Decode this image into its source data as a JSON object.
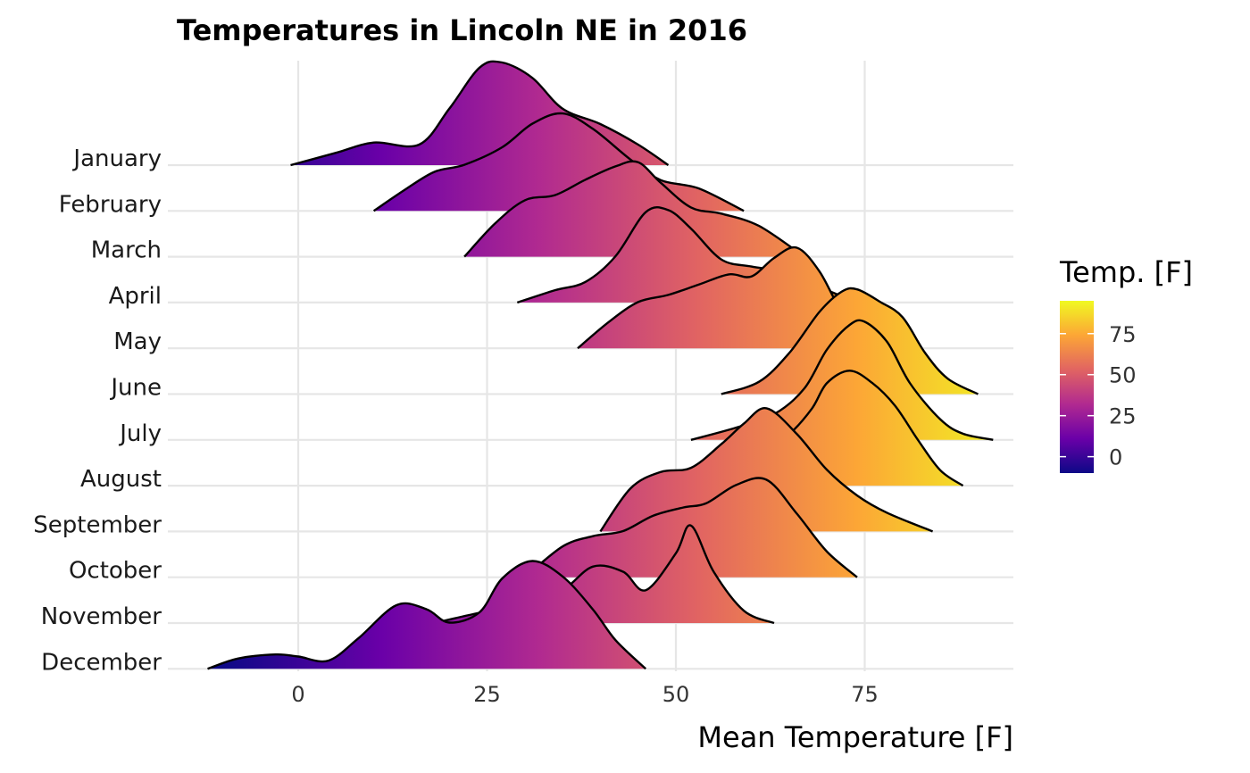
{
  "chart_data": {
    "type": "area",
    "title": "Temperatures in Lincoln NE in 2016",
    "xlabel": "Mean Temperature [F]",
    "ylabel": "",
    "xlim": [
      -17,
      95
    ],
    "xticks": [
      0,
      25,
      50,
      75
    ],
    "grid": true,
    "legend": {
      "title": "Temp. [F]",
      "placement": "right",
      "ticks": [
        0,
        25,
        50,
        75
      ],
      "range": [
        -10,
        95
      ],
      "colormap": "plasma",
      "stops": [
        "#0d0887",
        "#6a00a8",
        "#b12a90",
        "#e16462",
        "#fca636",
        "#f0f921"
      ]
    },
    "series": [
      {
        "name": "January",
        "x": [
          -1,
          5,
          10,
          16,
          20,
          24,
          27,
          31,
          35,
          40,
          45,
          49
        ],
        "density": [
          0,
          0.12,
          0.22,
          0.2,
          0.55,
          0.95,
          1.0,
          0.85,
          0.55,
          0.4,
          0.2,
          0
        ]
      },
      {
        "name": "February",
        "x": [
          10,
          14,
          18,
          22,
          27,
          31,
          35,
          39,
          44,
          48,
          53,
          59
        ],
        "density": [
          0,
          0.2,
          0.38,
          0.45,
          0.62,
          0.85,
          0.95,
          0.8,
          0.5,
          0.3,
          0.22,
          0
        ]
      },
      {
        "name": "March",
        "x": [
          22,
          26,
          30,
          34,
          38,
          42,
          45,
          48,
          52,
          56,
          61,
          67
        ],
        "density": [
          0,
          0.32,
          0.55,
          0.6,
          0.75,
          0.88,
          0.92,
          0.72,
          0.48,
          0.42,
          0.3,
          0
        ]
      },
      {
        "name": "April",
        "x": [
          29,
          34,
          38,
          42,
          46,
          49,
          52,
          56,
          60,
          64,
          68,
          74
        ],
        "density": [
          0,
          0.12,
          0.2,
          0.45,
          0.88,
          0.9,
          0.72,
          0.42,
          0.35,
          0.3,
          0.18,
          0
        ]
      },
      {
        "name": "May",
        "x": [
          37,
          41,
          45,
          49,
          53,
          57,
          60,
          63,
          66,
          69,
          72,
          76
        ],
        "density": [
          0,
          0.25,
          0.45,
          0.52,
          0.62,
          0.72,
          0.7,
          0.88,
          0.98,
          0.75,
          0.35,
          0
        ]
      },
      {
        "name": "June",
        "x": [
          56,
          61,
          65,
          69,
          72,
          74,
          77,
          80,
          83,
          86,
          90
        ],
        "density": [
          0,
          0.12,
          0.4,
          0.8,
          1.0,
          1.02,
          0.9,
          0.75,
          0.4,
          0.15,
          0
        ]
      },
      {
        "name": "July",
        "x": [
          52,
          58,
          63,
          67,
          70,
          73,
          75,
          78,
          81,
          85,
          88,
          92
        ],
        "density": [
          0,
          0.12,
          0.25,
          0.5,
          0.88,
          1.12,
          1.15,
          0.95,
          0.55,
          0.2,
          0.06,
          0
        ]
      },
      {
        "name": "August",
        "x": [
          58,
          62,
          65,
          68,
          70,
          73,
          76,
          79,
          82,
          85,
          88
        ],
        "density": [
          0,
          0.35,
          0.5,
          0.75,
          1.0,
          1.12,
          1.0,
          0.78,
          0.45,
          0.15,
          0
        ]
      },
      {
        "name": "September",
        "x": [
          40,
          44,
          48,
          52,
          56,
          59,
          62,
          66,
          70,
          74,
          78,
          84
        ],
        "density": [
          0,
          0.42,
          0.58,
          0.62,
          0.85,
          1.05,
          1.2,
          0.95,
          0.6,
          0.35,
          0.18,
          0
        ]
      },
      {
        "name": "October",
        "x": [
          30,
          35,
          39,
          43,
          47,
          51,
          54,
          58,
          62,
          66,
          70,
          74
        ],
        "density": [
          0,
          0.3,
          0.4,
          0.45,
          0.6,
          0.68,
          0.72,
          0.9,
          0.95,
          0.62,
          0.25,
          0
        ]
      },
      {
        "name": "November",
        "x": [
          18,
          24,
          30,
          35,
          39,
          43,
          46,
          50,
          52,
          55,
          59,
          63
        ],
        "density": [
          0,
          0.1,
          0.18,
          0.32,
          0.55,
          0.5,
          0.32,
          0.68,
          0.95,
          0.5,
          0.12,
          0
        ]
      },
      {
        "name": "December",
        "x": [
          -12,
          -8,
          -3,
          0,
          4,
          8,
          13,
          17,
          20,
          24,
          27,
          31,
          35,
          39,
          42,
          46
        ],
        "density": [
          0,
          0.1,
          0.14,
          0.12,
          0.08,
          0.3,
          0.62,
          0.58,
          0.45,
          0.55,
          0.88,
          1.05,
          0.9,
          0.58,
          0.28,
          0
        ]
      }
    ]
  }
}
